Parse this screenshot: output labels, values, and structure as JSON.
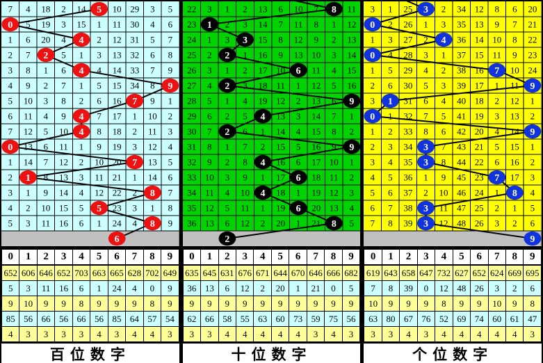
{
  "colors": {
    "frame": "#000000",
    "pending_bg": "#C0C0C0",
    "grid_line": "#000000",
    "trend_line": "#000000",
    "stats_yellow": "#FFFF99",
    "stats_cyan": "#CCFFFF"
  },
  "panels": [
    {
      "key": "hundreds",
      "footer_label": "百位数字",
      "colors": {
        "bg": "#CCFFFF",
        "circle": "#EE1111"
      },
      "prev_circle_col": null,
      "pending_circle_col": 6,
      "digit_header": [
        "0",
        "1",
        "2",
        "3",
        "4",
        "5",
        "6",
        "7",
        "8",
        "9"
      ],
      "grid_rows": [
        {
          "cells": [
            "7",
            "4",
            "18",
            "2",
            "14",
            "5",
            "10",
            "29",
            "3",
            "5"
          ],
          "circle_col": 5
        },
        {
          "cells": [
            "0",
            "5",
            "19",
            "3",
            "15",
            "1",
            "11",
            "30",
            "4",
            "6"
          ],
          "circle_col": 0
        },
        {
          "cells": [
            "1",
            "6",
            "20",
            "4",
            "4",
            "2",
            "12",
            "31",
            "5",
            "7"
          ],
          "circle_col": 4
        },
        {
          "cells": [
            "2",
            "7",
            "2",
            "5",
            "1",
            "3",
            "13",
            "32",
            "6",
            "8"
          ],
          "circle_col": 2
        },
        {
          "cells": [
            "3",
            "8",
            "1",
            "6",
            "4",
            "4",
            "14",
            "33",
            "7",
            "9"
          ],
          "circle_col": 4
        },
        {
          "cells": [
            "4",
            "9",
            "2",
            "7",
            "1",
            "5",
            "15",
            "34",
            "8",
            "9"
          ],
          "circle_col": 9
        },
        {
          "cells": [
            "5",
            "10",
            "3",
            "8",
            "2",
            "6",
            "16",
            "7",
            "9",
            "1"
          ],
          "circle_col": 7
        },
        {
          "cells": [
            "6",
            "11",
            "4",
            "9",
            "4",
            "7",
            "17",
            "1",
            "10",
            "2"
          ],
          "circle_col": 4
        },
        {
          "cells": [
            "7",
            "12",
            "5",
            "10",
            "4",
            "8",
            "18",
            "2",
            "11",
            "3"
          ],
          "circle_col": 4
        },
        {
          "cells": [
            "0",
            "13",
            "6",
            "11",
            "1",
            "9",
            "19",
            "3",
            "12",
            "4"
          ],
          "circle_col": 0
        },
        {
          "cells": [
            "1",
            "14",
            "7",
            "12",
            "2",
            "10",
            "20",
            "7",
            "13",
            "5"
          ],
          "circle_col": 7
        },
        {
          "cells": [
            "2",
            "1",
            "8",
            "13",
            "3",
            "11",
            "21",
            "1",
            "14",
            "6"
          ],
          "circle_col": 1
        },
        {
          "cells": [
            "3",
            "1",
            "9",
            "14",
            "4",
            "12",
            "22",
            "2",
            "8",
            "7"
          ],
          "circle_col": 8
        },
        {
          "cells": [
            "4",
            "2",
            "10",
            "15",
            "5",
            "5",
            "23",
            "3",
            "1",
            "8"
          ],
          "circle_col": 5
        },
        {
          "cells": [
            "5",
            "3",
            "11",
            "16",
            "6",
            "1",
            "24",
            "4",
            "8",
            "9"
          ],
          "circle_col": 8
        }
      ],
      "stats_rows": [
        [
          "652",
          "606",
          "646",
          "652",
          "703",
          "663",
          "665",
          "628",
          "702",
          "649"
        ],
        [
          "5",
          "3",
          "11",
          "16",
          "6",
          "1",
          "24",
          "4",
          "0",
          "9"
        ],
        [
          "9",
          "10",
          "9",
          "9",
          "8",
          "9",
          "9",
          "9",
          "8",
          "9"
        ],
        [
          "85",
          "56",
          "66",
          "56",
          "66",
          "56",
          "85",
          "64",
          "57",
          "54"
        ],
        [
          "4",
          "3",
          "3",
          "3",
          "3",
          "4",
          "3",
          "4",
          "4",
          "3"
        ]
      ]
    },
    {
      "key": "tens",
      "footer_label": "十位数字",
      "colors": {
        "bg": "#00D400",
        "circle": "#000000"
      },
      "prev_circle_col": 4,
      "pending_circle_col": 2,
      "digit_header": [
        "0",
        "1",
        "2",
        "3",
        "4",
        "5",
        "6",
        "7",
        "8",
        "9"
      ],
      "grid_rows": [
        {
          "cells": [
            "22",
            "3",
            "1",
            "2",
            "13",
            "6",
            "10",
            "7",
            "8",
            "11"
          ],
          "circle_col": 8
        },
        {
          "cells": [
            "23",
            "1",
            "2",
            "3",
            "14",
            "7",
            "11",
            "8",
            "1",
            "12"
          ],
          "circle_col": 1
        },
        {
          "cells": [
            "24",
            "1",
            "3",
            "3",
            "15",
            "8",
            "12",
            "9",
            "2",
            "13"
          ],
          "circle_col": 3
        },
        {
          "cells": [
            "25",
            "2",
            "2",
            "1",
            "16",
            "9",
            "13",
            "10",
            "3",
            "14"
          ],
          "circle_col": 2
        },
        {
          "cells": [
            "26",
            "3",
            "1",
            "2",
            "17",
            "10",
            "6",
            "11",
            "4",
            "15"
          ],
          "circle_col": 6
        },
        {
          "cells": [
            "27",
            "4",
            "2",
            "3",
            "18",
            "11",
            "1",
            "12",
            "5",
            "16"
          ],
          "circle_col": 2
        },
        {
          "cells": [
            "28",
            "5",
            "1",
            "4",
            "19",
            "12",
            "2",
            "13",
            "6",
            "9"
          ],
          "circle_col": 9
        },
        {
          "cells": [
            "29",
            "6",
            "2",
            "5",
            "4",
            "13",
            "3",
            "14",
            "7",
            "1"
          ],
          "circle_col": 4
        },
        {
          "cells": [
            "30",
            "7",
            "2",
            "6",
            "1",
            "14",
            "4",
            "15",
            "8",
            "2"
          ],
          "circle_col": 2
        },
        {
          "cells": [
            "31",
            "8",
            "1",
            "7",
            "2",
            "15",
            "5",
            "16",
            "9",
            "9"
          ],
          "circle_col": 9
        },
        {
          "cells": [
            "32",
            "9",
            "2",
            "8",
            "4",
            "16",
            "6",
            "17",
            "10",
            "1"
          ],
          "circle_col": 4
        },
        {
          "cells": [
            "33",
            "10",
            "3",
            "9",
            "1",
            "17",
            "6",
            "18",
            "11",
            "2"
          ],
          "circle_col": 6
        },
        {
          "cells": [
            "34",
            "11",
            "4",
            "10",
            "4",
            "18",
            "1",
            "19",
            "12",
            "3"
          ],
          "circle_col": 4
        },
        {
          "cells": [
            "35",
            "12",
            "5",
            "11",
            "1",
            "19",
            "6",
            "20",
            "13",
            "4"
          ],
          "circle_col": 6
        },
        {
          "cells": [
            "36",
            "13",
            "6",
            "12",
            "2",
            "20",
            "1",
            "21",
            "8",
            "5"
          ],
          "circle_col": 8
        }
      ],
      "stats_rows": [
        [
          "635",
          "645",
          "631",
          "676",
          "671",
          "644",
          "670",
          "646",
          "666",
          "682"
        ],
        [
          "36",
          "13",
          "6",
          "12",
          "2",
          "20",
          "1",
          "21",
          "0",
          "5"
        ],
        [
          "9",
          "9",
          "9",
          "9",
          "9",
          "9",
          "9",
          "9",
          "9",
          "9"
        ],
        [
          "62",
          "66",
          "58",
          "55",
          "63",
          "60",
          "73",
          "59",
          "75",
          "56"
        ],
        [
          "3",
          "3",
          "4",
          "4",
          "4",
          "4",
          "4",
          "3",
          "4",
          "3"
        ]
      ]
    },
    {
      "key": "units",
      "footer_label": "个位数字",
      "colors": {
        "bg": "#FFFF00",
        "circle": "#1133DD"
      },
      "prev_circle_col": 1,
      "pending_circle_col": 9,
      "digit_header": [
        "0",
        "1",
        "2",
        "3",
        "4",
        "5",
        "6",
        "7",
        "8",
        "9"
      ],
      "grid_rows": [
        {
          "cells": [
            "3",
            "1",
            "25",
            "3",
            "2",
            "34",
            "12",
            "8",
            "6",
            "20"
          ],
          "circle_col": 3
        },
        {
          "cells": [
            "0",
            "2",
            "26",
            "1",
            "3",
            "35",
            "13",
            "9",
            "7",
            "21"
          ],
          "circle_col": 0
        },
        {
          "cells": [
            "1",
            "3",
            "27",
            "2",
            "4",
            "36",
            "14",
            "10",
            "8",
            "22"
          ],
          "circle_col": 4
        },
        {
          "cells": [
            "0",
            "4",
            "28",
            "3",
            "1",
            "37",
            "15",
            "11",
            "9",
            "23"
          ],
          "circle_col": 0
        },
        {
          "cells": [
            "1",
            "5",
            "29",
            "4",
            "2",
            "38",
            "16",
            "7",
            "10",
            "24"
          ],
          "circle_col": 7
        },
        {
          "cells": [
            "2",
            "6",
            "30",
            "5",
            "3",
            "39",
            "17",
            "1",
            "11",
            "9"
          ],
          "circle_col": 9
        },
        {
          "cells": [
            "3",
            "1",
            "31",
            "6",
            "4",
            "40",
            "18",
            "2",
            "12",
            "1"
          ],
          "circle_col": 1
        },
        {
          "cells": [
            "0",
            "1",
            "32",
            "7",
            "5",
            "41",
            "19",
            "3",
            "13",
            "2"
          ],
          "circle_col": 0
        },
        {
          "cells": [
            "1",
            "2",
            "33",
            "8",
            "6",
            "42",
            "20",
            "4",
            "14",
            "9"
          ],
          "circle_col": 9
        },
        {
          "cells": [
            "2",
            "3",
            "34",
            "3",
            "7",
            "43",
            "21",
            "5",
            "15",
            "1"
          ],
          "circle_col": 3
        },
        {
          "cells": [
            "3",
            "4",
            "35",
            "3",
            "8",
            "44",
            "22",
            "6",
            "16",
            "2"
          ],
          "circle_col": 3
        },
        {
          "cells": [
            "4",
            "5",
            "36",
            "1",
            "9",
            "45",
            "23",
            "7",
            "17",
            "3"
          ],
          "circle_col": 7
        },
        {
          "cells": [
            "5",
            "6",
            "37",
            "2",
            "10",
            "46",
            "24",
            "1",
            "8",
            "4"
          ],
          "circle_col": 8
        },
        {
          "cells": [
            "6",
            "7",
            "38",
            "3",
            "11",
            "47",
            "25",
            "2",
            "1",
            "5"
          ],
          "circle_col": 3
        },
        {
          "cells": [
            "7",
            "8",
            "39",
            "3",
            "12",
            "48",
            "26",
            "3",
            "2",
            "6"
          ],
          "circle_col": 3
        }
      ],
      "stats_rows": [
        [
          "619",
          "643",
          "658",
          "647",
          "732",
          "627",
          "652",
          "624",
          "669",
          "695"
        ],
        [
          "7",
          "8",
          "39",
          "0",
          "12",
          "48",
          "26",
          "3",
          "2",
          "6"
        ],
        [
          "10",
          "9",
          "9",
          "9",
          "8",
          "9",
          "9",
          "10",
          "9",
          "8"
        ],
        [
          "63",
          "80",
          "67",
          "76",
          "52",
          "69",
          "74",
          "60",
          "61",
          "47"
        ],
        [
          "3",
          "3",
          "4",
          "3",
          "4",
          "4",
          "4",
          "4",
          "4",
          "3"
        ]
      ]
    }
  ],
  "chart_data": {
    "type": "table",
    "title": "",
    "panel_labels": [
      "百位数字",
      "十位数字",
      "个位数字"
    ],
    "columns": [
      "0",
      "1",
      "2",
      "3",
      "4",
      "5",
      "6",
      "7",
      "8",
      "9"
    ],
    "drawn_digit_series": [
      {
        "name": "百位数字",
        "values": [
          5,
          0,
          4,
          2,
          4,
          9,
          7,
          4,
          4,
          0,
          7,
          1,
          8,
          5,
          8
        ],
        "pending": 6
      },
      {
        "name": "十位数字",
        "values": [
          8,
          1,
          3,
          2,
          6,
          2,
          9,
          4,
          2,
          9,
          4,
          6,
          4,
          6,
          8
        ],
        "pending": 2
      },
      {
        "name": "个位数字",
        "values": [
          3,
          0,
          4,
          0,
          7,
          9,
          1,
          0,
          9,
          3,
          3,
          7,
          8,
          3,
          3
        ],
        "pending": 9
      }
    ]
  }
}
